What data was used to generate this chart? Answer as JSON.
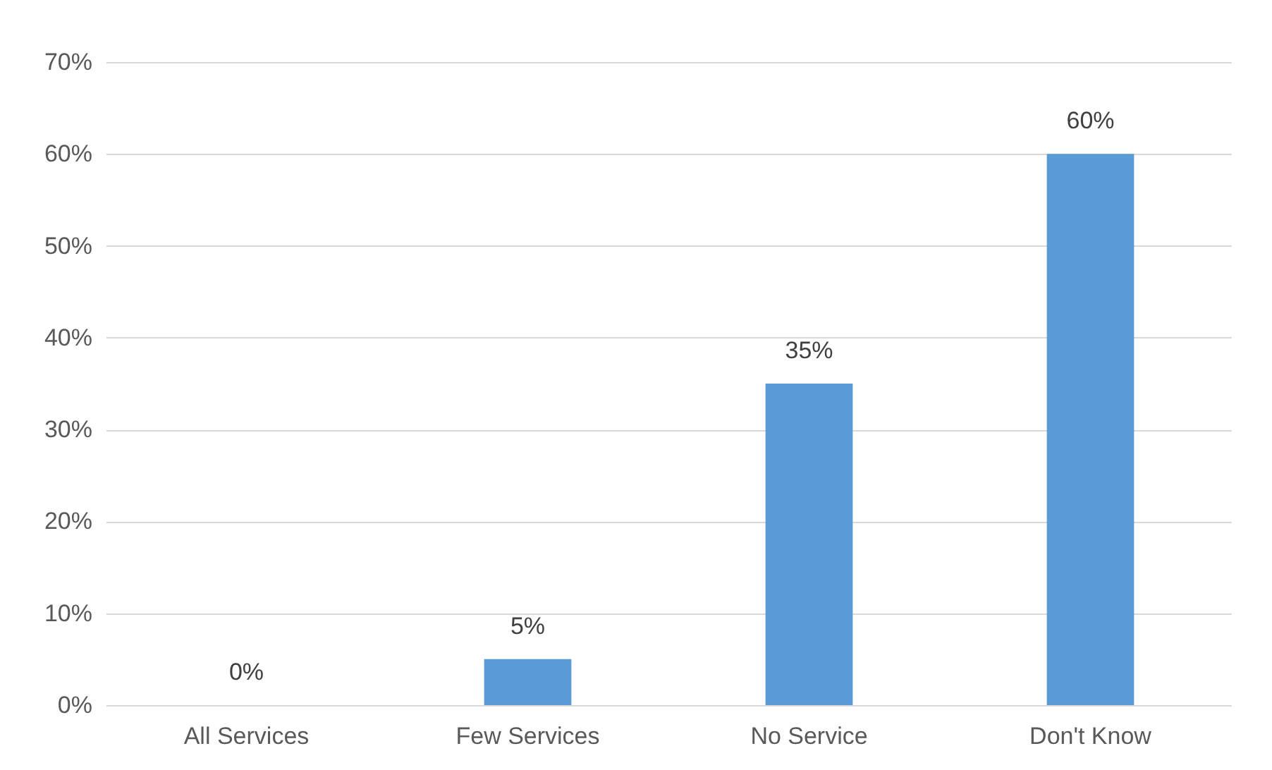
{
  "chart_data": {
    "type": "bar",
    "categories": [
      "All Services",
      "Few Services",
      "No Service",
      "Don't Know"
    ],
    "values": [
      0,
      5,
      35,
      60
    ],
    "color": "#5b9bd5",
    "value_labels": [
      "0%",
      "5%",
      "35%",
      "60%"
    ],
    "ylim": [
      0,
      70
    ],
    "yticks": [
      {
        "value": 0,
        "label": "0%"
      },
      {
        "value": 10,
        "label": "10%"
      },
      {
        "value": 20,
        "label": "20%"
      },
      {
        "value": 30,
        "label": "30%"
      },
      {
        "value": 40,
        "label": "40%"
      },
      {
        "value": 50,
        "label": "50%"
      },
      {
        "value": 60,
        "label": "60%"
      },
      {
        "value": 70,
        "label": "70%"
      }
    ],
    "grid": "y"
  }
}
